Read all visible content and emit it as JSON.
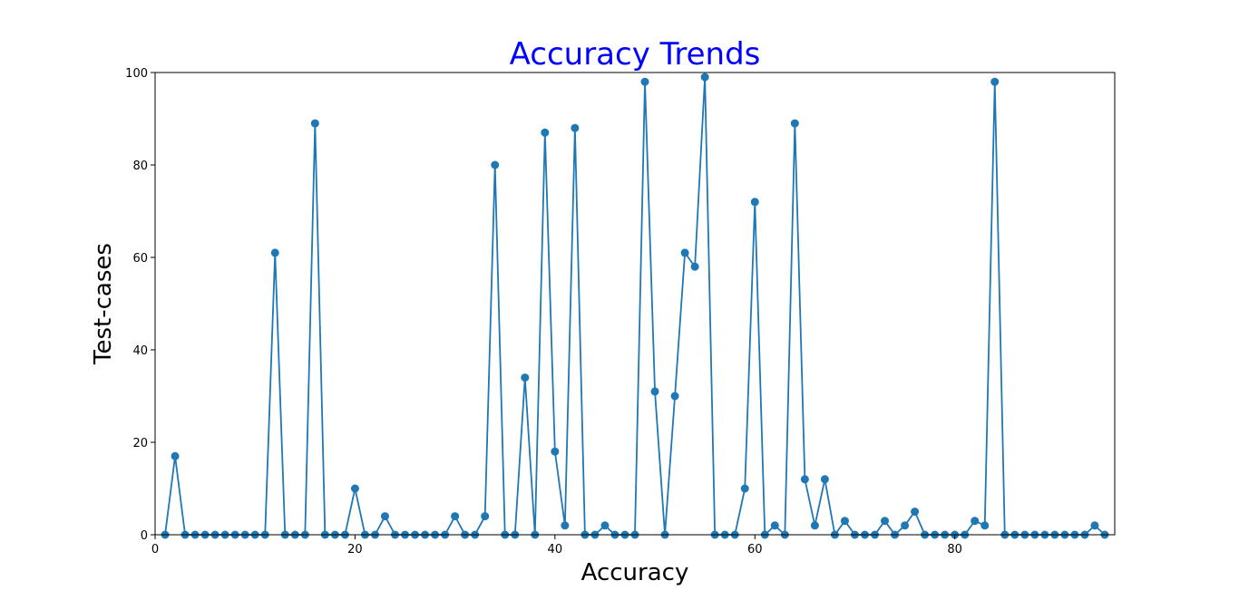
{
  "chart_data": {
    "type": "line",
    "title": "Accuracy Trends",
    "xlabel": "Accuracy",
    "ylabel": "Test-cases",
    "xlim": [
      0,
      96
    ],
    "ylim": [
      0,
      100
    ],
    "xticks": [
      0,
      20,
      40,
      60,
      80
    ],
    "yticks": [
      0,
      20,
      40,
      60,
      80,
      100
    ],
    "grid": false,
    "marker": "circle",
    "colors": {
      "series": "#1f77b4",
      "title": "#0000ff",
      "axis": "#000000"
    },
    "series": [
      {
        "x": [
          1,
          2,
          3,
          4,
          5,
          6,
          7,
          8,
          9,
          10,
          11,
          12,
          13,
          14,
          15,
          16,
          17,
          18,
          19,
          20,
          21,
          22,
          23,
          24,
          25,
          26,
          27,
          28,
          29,
          30,
          31,
          32,
          33,
          34,
          35,
          36,
          37,
          38,
          39,
          40,
          41,
          42,
          43,
          44,
          45,
          46,
          47,
          48,
          49,
          50,
          51,
          52,
          53,
          54,
          55,
          56,
          57,
          58,
          59,
          60,
          61,
          62,
          63,
          64,
          65,
          66,
          67,
          68,
          69,
          70,
          71,
          72,
          73,
          74,
          75,
          76,
          77,
          78,
          79,
          80,
          81,
          82,
          83,
          84,
          85,
          86,
          87,
          88,
          89,
          90,
          91,
          92,
          93,
          94,
          95
        ],
        "values": [
          0,
          17,
          0,
          0,
          0,
          0,
          0,
          0,
          0,
          0,
          0,
          61,
          0,
          0,
          0,
          89,
          0,
          0,
          0,
          10,
          0,
          0,
          4,
          0,
          0,
          0,
          0,
          0,
          0,
          4,
          0,
          0,
          4,
          80,
          0,
          0,
          34,
          0,
          87,
          18,
          2,
          88,
          0,
          0,
          2,
          0,
          0,
          0,
          98,
          31,
          0,
          30,
          61,
          58,
          99,
          0,
          0,
          0,
          10,
          72,
          0,
          2,
          0,
          89,
          12,
          2,
          12,
          0,
          3,
          0,
          0,
          0,
          3,
          0,
          2,
          5,
          0,
          0,
          0,
          0,
          0,
          3,
          2,
          98,
          0,
          0,
          0,
          0,
          0,
          0,
          0,
          0,
          0,
          2,
          0
        ]
      }
    ]
  }
}
